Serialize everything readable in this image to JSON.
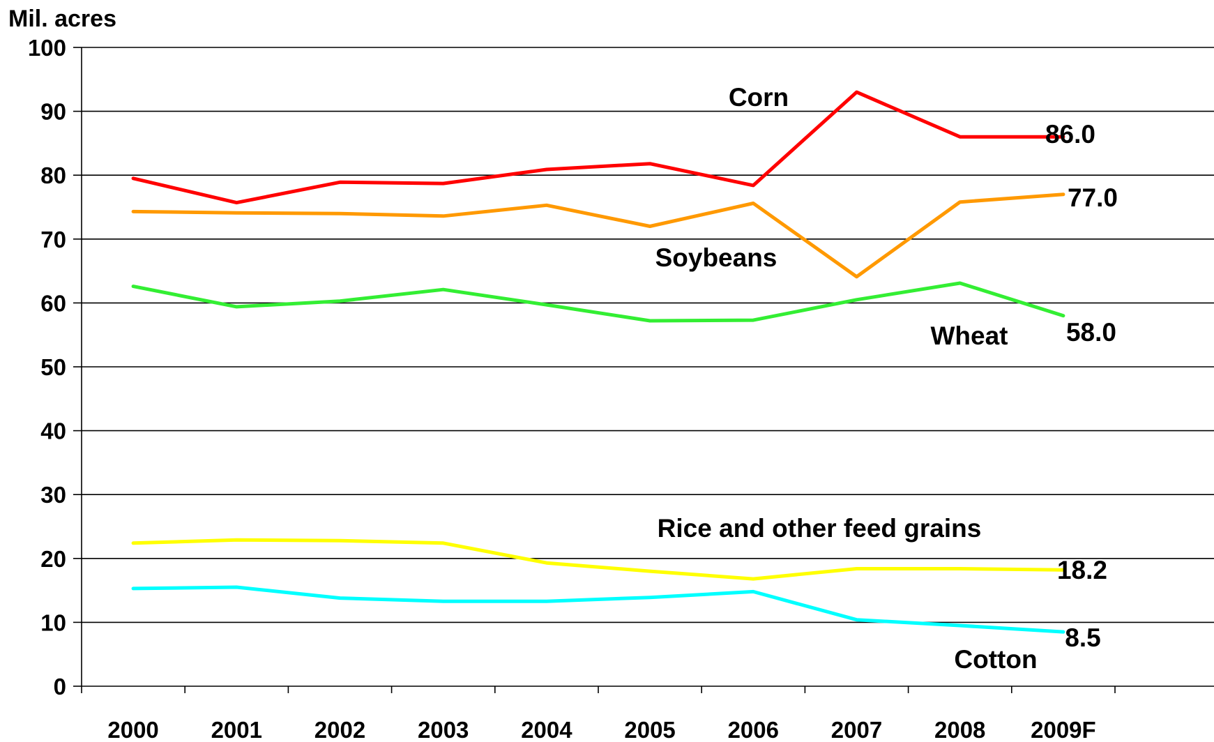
{
  "chart_data": {
    "type": "line",
    "ylabel": "Mil. acres",
    "xlabel": "",
    "ylim": [
      0,
      100
    ],
    "yticks": [
      0,
      10,
      20,
      30,
      40,
      50,
      60,
      70,
      80,
      90,
      100
    ],
    "categories": [
      "2000",
      "2001",
      "2002",
      "2003",
      "2004",
      "2005",
      "2006",
      "2007",
      "2008",
      "2009F"
    ],
    "grid": "horizontal",
    "series": [
      {
        "name": "Corn",
        "color": "#ff0000",
        "end_label": "86.0",
        "values": [
          79.5,
          75.7,
          78.9,
          78.7,
          80.9,
          81.8,
          78.4,
          93.0,
          86.0,
          86.0
        ]
      },
      {
        "name": "Soybeans",
        "color": "#ff9900",
        "end_label": "77.0",
        "values": [
          74.3,
          74.1,
          74.0,
          73.6,
          75.3,
          72.0,
          75.6,
          64.1,
          75.8,
          77.0
        ]
      },
      {
        "name": "Wheat",
        "color": "#33ee33",
        "end_label": "58.0",
        "values": [
          62.6,
          59.4,
          60.3,
          62.1,
          59.7,
          57.2,
          57.3,
          60.5,
          63.1,
          58.0
        ]
      },
      {
        "name": "Rice and other feed grains",
        "color": "#ffff00",
        "end_label": "18.2",
        "values": [
          22.4,
          22.9,
          22.8,
          22.4,
          19.3,
          18.0,
          16.8,
          18.4,
          18.4,
          18.2
        ]
      },
      {
        "name": "Cotton",
        "color": "#00ffff",
        "end_label": "8.5",
        "values": [
          15.3,
          15.5,
          13.8,
          13.3,
          13.3,
          13.9,
          14.8,
          10.4,
          9.5,
          8.5
        ]
      }
    ]
  }
}
